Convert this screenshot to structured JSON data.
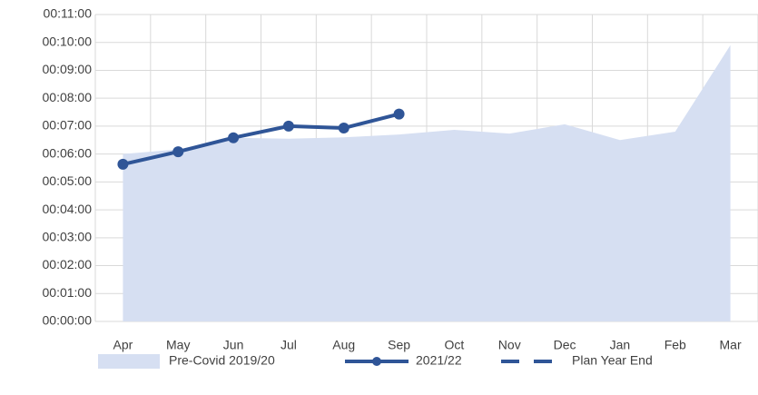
{
  "chart_data": {
    "type": "line",
    "categories": [
      "Apr",
      "May",
      "Jun",
      "Jul",
      "Aug",
      "Sep",
      "Oct",
      "Nov",
      "Dec",
      "Jan",
      "Feb",
      "Mar"
    ],
    "series": [
      {
        "name": "Pre-Covid 2019/20",
        "kind": "area",
        "color": "#d6dff2",
        "values": [
          360,
          370,
          395,
          393,
          396,
          402,
          412,
          404,
          424,
          390,
          408,
          594
        ]
      },
      {
        "name": "2021/22",
        "kind": "line",
        "color": "#2f5597",
        "values": [
          338,
          365,
          395,
          420,
          416,
          446,
          null,
          null,
          null,
          null,
          null,
          null
        ]
      },
      {
        "name": "Plan Year End",
        "kind": "dashed",
        "color": "#2f5597",
        "values": [
          null,
          null,
          null,
          null,
          null,
          null,
          null,
          null,
          null,
          null,
          null,
          null
        ]
      }
    ],
    "ylim": [
      0,
      660
    ],
    "yticks": [
      {
        "value": 0,
        "label": "00:00:00"
      },
      {
        "value": 60,
        "label": "00:01:00"
      },
      {
        "value": 120,
        "label": "00:02:00"
      },
      {
        "value": 180,
        "label": "00:03:00"
      },
      {
        "value": 240,
        "label": "00:04:00"
      },
      {
        "value": 300,
        "label": "00:05:00"
      },
      {
        "value": 360,
        "label": "00:06:00"
      },
      {
        "value": 420,
        "label": "00:07:00"
      },
      {
        "value": 480,
        "label": "00:08:00"
      },
      {
        "value": 540,
        "label": "00:09:00"
      },
      {
        "value": 600,
        "label": "00:10:00"
      },
      {
        "value": 660,
        "label": "00:11:00"
      }
    ],
    "grid": true,
    "legend": "bottom"
  }
}
